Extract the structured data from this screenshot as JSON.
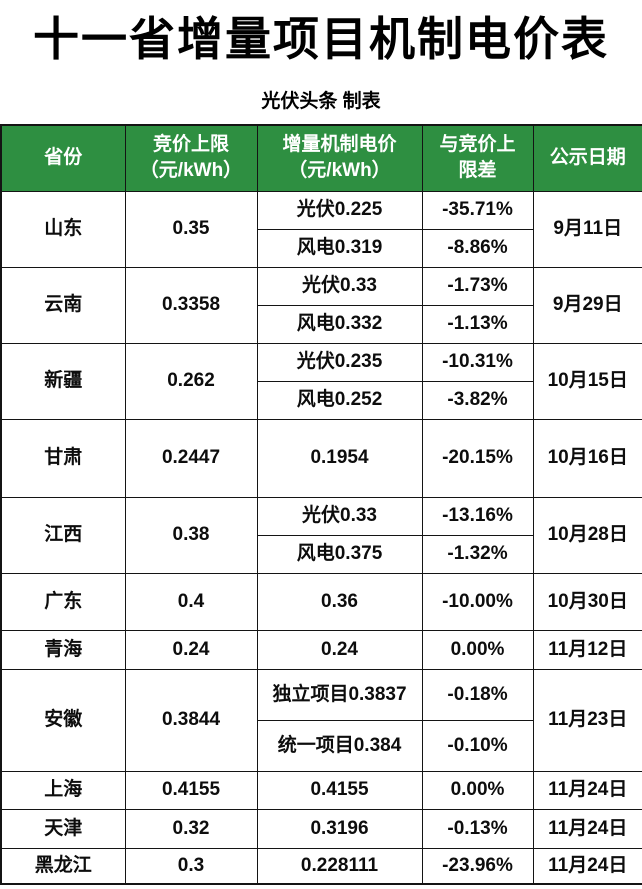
{
  "title": "十一省增量项目机制电价表",
  "subtitle": "光伏头条 制表",
  "colors": {
    "header_green": "#2E8F41",
    "border": "#141414",
    "text": "#0d0d0d",
    "header_text": "#ffffff"
  },
  "table": {
    "columns": [
      {
        "lines": [
          "省份"
        ]
      },
      {
        "lines": [
          "竞价上限",
          "（元/kWh）"
        ]
      },
      {
        "lines": [
          "增量机制电价",
          "（元/kWh）"
        ]
      },
      {
        "lines": [
          "与竞价上",
          "限差"
        ]
      },
      {
        "lines": [
          "公示日期"
        ]
      }
    ],
    "rows": [
      {
        "province": "山东",
        "cap": "0.35",
        "date": "9月11日",
        "entries": [
          {
            "price": "光伏0.225",
            "diff": "-35.71%"
          },
          {
            "price": "风电0.319",
            "diff": "-8.86%"
          }
        ]
      },
      {
        "province": "云南",
        "cap": "0.3358",
        "date": "9月29日",
        "entries": [
          {
            "price": "光伏0.33",
            "diff": "-1.73%"
          },
          {
            "price": "风电0.332",
            "diff": "-1.13%"
          }
        ]
      },
      {
        "province": "新疆",
        "cap": "0.262",
        "date": "10月15日",
        "entries": [
          {
            "price": "光伏0.235",
            "diff": "-10.31%"
          },
          {
            "price": "风电0.252",
            "diff": "-3.82%"
          }
        ]
      },
      {
        "province": "甘肃",
        "cap": "0.2447",
        "date": "10月16日",
        "entries": [
          {
            "price": "0.1954",
            "diff": "-20.15%"
          }
        ]
      },
      {
        "province": "江西",
        "cap": "0.38",
        "date": "10月28日",
        "entries": [
          {
            "price": "光伏0.33",
            "diff": "-13.16%"
          },
          {
            "price": "风电0.375",
            "diff": "-1.32%"
          }
        ]
      },
      {
        "province": "广东",
        "cap": "0.4",
        "date": "10月30日",
        "entries": [
          {
            "price": "0.36",
            "diff": "-10.00%"
          }
        ]
      },
      {
        "province": "青海",
        "cap": "0.24",
        "date": "11月12日",
        "entries": [
          {
            "price": "0.24",
            "diff": "0.00%"
          }
        ]
      },
      {
        "province": "安徽",
        "cap": "0.3844",
        "date": "11月23日",
        "entries": [
          {
            "price": "独立项目0.3837",
            "diff": "-0.18%"
          },
          {
            "price": "统一项目0.384",
            "diff": "-0.10%"
          }
        ]
      },
      {
        "province": "上海",
        "cap": "0.4155",
        "date": "11月24日",
        "entries": [
          {
            "price": "0.4155",
            "diff": "0.00%"
          }
        ]
      },
      {
        "province": "天津",
        "cap": "0.32",
        "date": "11月24日",
        "entries": [
          {
            "price": "0.3196",
            "diff": "-0.13%"
          }
        ]
      },
      {
        "province": "黑龙江",
        "cap": "0.3",
        "date": "11月24日",
        "entries": [
          {
            "price": "0.228111",
            "diff": "-23.96%"
          }
        ]
      }
    ]
  },
  "chart_data": {
    "type": "table",
    "title": "十一省增量项目机制电价表",
    "subtitle": "光伏头条 制表",
    "columns": [
      "省份",
      "竞价上限（元/kWh）",
      "增量机制电价（元/kWh）",
      "与竞价上限差",
      "公示日期"
    ],
    "rows": [
      [
        "山东",
        "0.35",
        "光伏0.225",
        "-35.71%",
        "9月11日"
      ],
      [
        "山东",
        "0.35",
        "风电0.319",
        "-8.86%",
        "9月11日"
      ],
      [
        "云南",
        "0.3358",
        "光伏0.33",
        "-1.73%",
        "9月29日"
      ],
      [
        "云南",
        "0.3358",
        "风电0.332",
        "-1.13%",
        "9月29日"
      ],
      [
        "新疆",
        "0.262",
        "光伏0.235",
        "-10.31%",
        "10月15日"
      ],
      [
        "新疆",
        "0.262",
        "风电0.252",
        "-3.82%",
        "10月15日"
      ],
      [
        "甘肃",
        "0.2447",
        "0.1954",
        "-20.15%",
        "10月16日"
      ],
      [
        "江西",
        "0.38",
        "光伏0.33",
        "-13.16%",
        "10月28日"
      ],
      [
        "江西",
        "0.38",
        "风电0.375",
        "-1.32%",
        "10月28日"
      ],
      [
        "广东",
        "0.4",
        "0.36",
        "-10.00%",
        "10月30日"
      ],
      [
        "青海",
        "0.24",
        "0.24",
        "0.00%",
        "11月12日"
      ],
      [
        "安徽",
        "0.3844",
        "独立项目0.3837",
        "-0.18%",
        "11月23日"
      ],
      [
        "安徽",
        "0.3844",
        "统一项目0.384",
        "-0.10%",
        "11月23日"
      ],
      [
        "上海",
        "0.4155",
        "0.4155",
        "0.00%",
        "11月24日"
      ],
      [
        "天津",
        "0.32",
        "0.3196",
        "-0.13%",
        "11月24日"
      ],
      [
        "黑龙江",
        "0.3",
        "0.228111",
        "-23.96%",
        "11月24日"
      ]
    ]
  }
}
